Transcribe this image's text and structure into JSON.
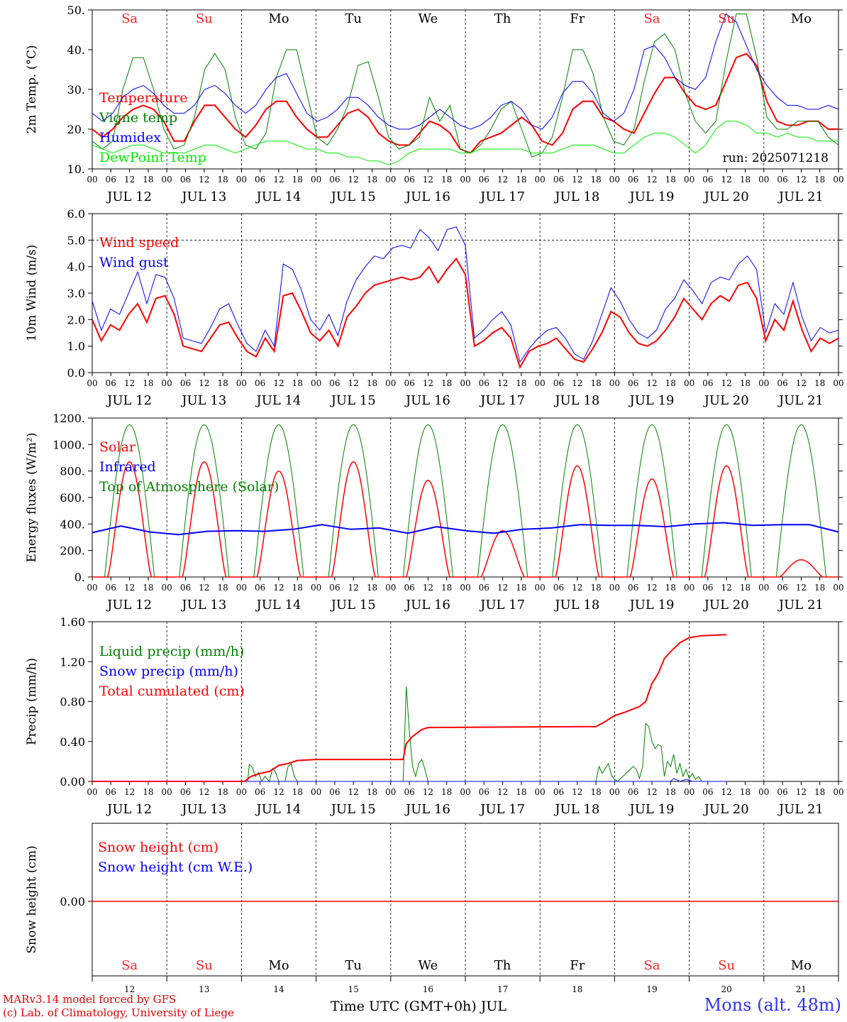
{
  "chart_data": [
    {
      "type": "line",
      "ylabel": "2m Temp. (°C)",
      "ylim": [
        10,
        50
      ],
      "yticks": [
        "10.",
        "20.",
        "30.",
        "40.",
        "50."
      ],
      "annotation": "run: 2025071218",
      "day_labels": [
        {
          "text": "Sa",
          "color": "#ff2020"
        },
        {
          "text": "Su",
          "color": "#ff2020"
        },
        {
          "text": "Mo",
          "color": "#000000"
        },
        {
          "text": "Tu",
          "color": "#000000"
        },
        {
          "text": "We",
          "color": "#000000"
        },
        {
          "text": "Th",
          "color": "#000000"
        },
        {
          "text": "Fr",
          "color": "#000000"
        },
        {
          "text": "Sa",
          "color": "#ff2020"
        },
        {
          "text": "Su",
          "color": "#ff2020"
        },
        {
          "text": "Mo",
          "color": "#000000"
        }
      ],
      "series": [
        {
          "name": "Temperature",
          "color": "#ff0000",
          "width": 2,
          "values": [
            20,
            18,
            20,
            23,
            25,
            26,
            25,
            22,
            17,
            17,
            22,
            26,
            26,
            23,
            20,
            18,
            21,
            25,
            27,
            27,
            23,
            20,
            18,
            18,
            21,
            24,
            25,
            23,
            19,
            17,
            16,
            16,
            19,
            22,
            21,
            19,
            15,
            14,
            17,
            18,
            19,
            21,
            23,
            21,
            17,
            16,
            19,
            25,
            27,
            27,
            23,
            22,
            20,
            19,
            24,
            29,
            33,
            33,
            29,
            26,
            25,
            26,
            32,
            38,
            39,
            36,
            27,
            22,
            21,
            21,
            22,
            22,
            20,
            20
          ]
        },
        {
          "name": "Vigne temp",
          "color": "#008000",
          "width": 1,
          "values": [
            17,
            15,
            17,
            30,
            38,
            38,
            30,
            20,
            15,
            16,
            23,
            35,
            39,
            35,
            23,
            16,
            15,
            19,
            33,
            40,
            40,
            29,
            18,
            16,
            20,
            26,
            36,
            37,
            28,
            18,
            15,
            16,
            18,
            28,
            22,
            26,
            15,
            14,
            16,
            20,
            25,
            27,
            20,
            13,
            14,
            18,
            28,
            40,
            40,
            34,
            23,
            17,
            16,
            20,
            32,
            42,
            44,
            40,
            29,
            22,
            19,
            22,
            37,
            49,
            49,
            38,
            23,
            20,
            20,
            22,
            22,
            22,
            18,
            16
          ]
        },
        {
          "name": "Humidex",
          "color": "#0000ff",
          "width": 1,
          "values": [
            24,
            22,
            24,
            28,
            30,
            31,
            29,
            26,
            24,
            24,
            26,
            30,
            31,
            29,
            26,
            24,
            26,
            30,
            33,
            34,
            29,
            24,
            22,
            23,
            25,
            28,
            28,
            26,
            23,
            21,
            20,
            20,
            21,
            23,
            25,
            23,
            21,
            20,
            21,
            23,
            26,
            27,
            25,
            21,
            20,
            23,
            29,
            32,
            32,
            29,
            24,
            22,
            24,
            30,
            40,
            41,
            38,
            33,
            31,
            30,
            33,
            42,
            49,
            47,
            41,
            35,
            31,
            28,
            26,
            26,
            25,
            25,
            26,
            25
          ]
        },
        {
          "name": "DewPoint Temp",
          "color": "#00ee00",
          "width": 1,
          "values": [
            16,
            15,
            14,
            15,
            16,
            16,
            15,
            14,
            14,
            14,
            15,
            16,
            16,
            15,
            14,
            15,
            16,
            17,
            17,
            17,
            16,
            15,
            15,
            14,
            14,
            13,
            13,
            12,
            12,
            11,
            12,
            14,
            15,
            15,
            15,
            15,
            14,
            14,
            15,
            15,
            15,
            15,
            15,
            14,
            14,
            14,
            15,
            16,
            16,
            16,
            15,
            14,
            14,
            16,
            18,
            19,
            19,
            18,
            16,
            14,
            16,
            20,
            22,
            22,
            21,
            19,
            19,
            18,
            19,
            18,
            18,
            17,
            17,
            17
          ]
        }
      ]
    },
    {
      "type": "line",
      "ylabel": "10m Wind (m/s)",
      "ylim": [
        0,
        6
      ],
      "yticks": [
        "0.0",
        "1.0",
        "2.0",
        "3.0",
        "4.0",
        "5.0",
        "6.0"
      ],
      "dashed_line": 5,
      "series": [
        {
          "name": "Wind speed",
          "color": "#ff0000",
          "width": 2,
          "values": [
            2.0,
            1.2,
            1.8,
            1.6,
            2.2,
            2.6,
            1.9,
            2.8,
            2.9,
            2.2,
            1.0,
            0.9,
            0.8,
            1.3,
            1.8,
            1.9,
            1.3,
            0.8,
            0.6,
            1.3,
            0.8,
            2.9,
            3.0,
            2.3,
            1.5,
            1.2,
            1.6,
            1.0,
            2.1,
            2.5,
            3.0,
            3.3,
            3.4,
            3.5,
            3.6,
            3.5,
            3.6,
            4.0,
            3.4,
            3.9,
            4.3,
            3.7,
            1.0,
            1.2,
            1.5,
            1.7,
            1.3,
            0.2,
            0.8,
            1.0,
            1.1,
            1.3,
            0.9,
            0.5,
            0.4,
            0.9,
            1.5,
            2.3,
            2.1,
            1.5,
            1.1,
            1.0,
            1.2,
            1.6,
            2.1,
            2.8,
            2.4,
            2.0,
            2.6,
            2.9,
            2.7,
            3.3,
            3.4,
            2.8,
            1.2,
            2.0,
            1.6,
            2.7,
            1.6,
            0.8,
            1.3,
            1.1,
            1.3
          ]
        },
        {
          "name": "Wind gust",
          "color": "#0000ff",
          "width": 1,
          "values": [
            2.7,
            1.6,
            2.4,
            2.2,
            3.0,
            3.8,
            2.6,
            3.7,
            3.6,
            2.8,
            1.3,
            1.2,
            1.1,
            1.7,
            2.4,
            2.6,
            1.8,
            1.1,
            0.8,
            1.6,
            1.0,
            4.1,
            3.9,
            3.1,
            2.0,
            1.6,
            2.2,
            1.4,
            2.7,
            3.5,
            4.0,
            4.4,
            4.3,
            4.7,
            4.8,
            4.7,
            5.4,
            5.1,
            4.6,
            5.4,
            5.5,
            4.8,
            1.3,
            1.6,
            2.0,
            2.3,
            1.8,
            0.4,
            0.9,
            1.3,
            1.6,
            1.7,
            1.3,
            0.7,
            0.5,
            1.2,
            2.2,
            3.2,
            2.7,
            2.0,
            1.5,
            1.3,
            1.6,
            2.4,
            2.8,
            3.5,
            3.1,
            2.6,
            3.4,
            3.6,
            3.5,
            4.1,
            4.4,
            3.9,
            1.5,
            2.6,
            2.2,
            3.4,
            2.1,
            1.2,
            1.7,
            1.5,
            1.6
          ]
        }
      ]
    },
    {
      "type": "line",
      "ylabel": "Energy fluxes (W/m²)",
      "ylim": [
        0,
        1200
      ],
      "yticks": [
        "0.",
        "200.",
        "400.",
        "600.",
        "800.",
        "1000.",
        "1200."
      ],
      "solar_peaks": [
        870,
        870,
        800,
        870,
        730,
        350,
        840,
        740,
        840,
        130
      ],
      "series": [
        {
          "name": "Solar",
          "color": "#ff0000",
          "width": 1.5
        },
        {
          "name": "Infrared",
          "color": "#0000ff",
          "width": 2,
          "values": [
            335,
            385,
            340,
            320,
            345,
            350,
            345,
            360,
            395,
            360,
            370,
            330,
            380,
            350,
            330,
            360,
            370,
            395,
            390,
            390,
            380,
            400,
            410,
            390,
            395,
            395,
            340
          ]
        },
        {
          "name": "Top of Atmosphere (Solar)",
          "color": "#008000",
          "width": 1,
          "peak": 1150
        }
      ]
    },
    {
      "type": "line",
      "ylabel": "Precip (mm/h)",
      "ylim": [
        0,
        1.6
      ],
      "yticks": [
        "0.00",
        "0.40",
        "0.80",
        "1.20",
        "1.60"
      ],
      "series": [
        {
          "name": "Liquid precip (mm/h)",
          "color": "#008000",
          "width": 1,
          "points": [
            [
              0,
              0
            ],
            [
              50,
              0
            ],
            [
              50.5,
              0.17
            ],
            [
              51.5,
              0.14
            ],
            [
              52.5,
              0.05
            ],
            [
              53.5,
              0.09
            ],
            [
              54.5,
              0.0
            ],
            [
              55.5,
              0.05
            ],
            [
              57,
              0.0
            ],
            [
              58,
              0.13
            ],
            [
              59,
              0.09
            ],
            [
              60,
              0.0
            ],
            [
              62,
              0.0
            ],
            [
              63,
              0.15
            ],
            [
              64,
              0.18
            ],
            [
              65,
              0.05
            ],
            [
              66,
              0
            ],
            [
              98,
              0
            ],
            [
              100,
              0
            ],
            [
              101,
              0.95
            ],
            [
              102,
              0.5
            ],
            [
              103,
              0.15
            ],
            [
              104,
              0.05
            ],
            [
              105,
              0.18
            ],
            [
              106,
              0.22
            ],
            [
              107,
              0.12
            ],
            [
              108,
              0
            ],
            [
              162,
              0
            ],
            [
              163,
              0.15
            ],
            [
              164,
              0.08
            ],
            [
              165,
              0.13
            ],
            [
              166,
              0.18
            ],
            [
              167,
              0.06
            ],
            [
              168,
              0.02
            ],
            [
              169,
              0
            ],
            [
              174,
              0.15
            ],
            [
              175,
              0.12
            ],
            [
              176,
              0.03
            ],
            [
              177,
              0.15
            ],
            [
              178,
              0.58
            ],
            [
              179,
              0.55
            ],
            [
              180,
              0.4
            ],
            [
              181,
              0.33
            ],
            [
              182,
              0.37
            ],
            [
              183,
              0.35
            ],
            [
              184,
              0.05
            ],
            [
              185,
              0.2
            ],
            [
              186,
              0.15
            ],
            [
              187,
              0.27
            ],
            [
              188,
              0.08
            ],
            [
              189,
              0.18
            ],
            [
              190,
              0.05
            ],
            [
              191,
              0.12
            ],
            [
              192,
              0.03
            ],
            [
              193,
              0.08
            ],
            [
              194,
              0.02
            ],
            [
              195,
              0.05
            ],
            [
              196,
              0
            ],
            [
              204,
              0
            ]
          ]
        },
        {
          "name": "Snow precip (mm/h)",
          "color": "#0000ff",
          "width": 1,
          "points": [
            [
              0,
              0
            ],
            [
              186,
              0
            ],
            [
              187,
              0.03
            ],
            [
              189,
              0
            ],
            [
              191,
              0.02
            ],
            [
              193,
              0
            ],
            [
              204,
              0
            ]
          ]
        },
        {
          "name": "Total cumulated (cm)",
          "color": "#ff0000",
          "width": 2,
          "points": [
            [
              0,
              0
            ],
            [
              49,
              0
            ],
            [
              51,
              0.05
            ],
            [
              54,
              0.08
            ],
            [
              57,
              0.1
            ],
            [
              60,
              0.16
            ],
            [
              63,
              0.18
            ],
            [
              66,
              0.21
            ],
            [
              72,
              0.22
            ],
            [
              100,
              0.22
            ],
            [
              101,
              0.38
            ],
            [
              103,
              0.45
            ],
            [
              106,
              0.52
            ],
            [
              108,
              0.54
            ],
            [
              162,
              0.55
            ],
            [
              165,
              0.6
            ],
            [
              168,
              0.66
            ],
            [
              171,
              0.69
            ],
            [
              176,
              0.75
            ],
            [
              178,
              0.8
            ],
            [
              180,
              0.98
            ],
            [
              182,
              1.08
            ],
            [
              184,
              1.23
            ],
            [
              186,
              1.3
            ],
            [
              189,
              1.39
            ],
            [
              192,
              1.44
            ],
            [
              196,
              1.46
            ],
            [
              204,
              1.47
            ]
          ]
        }
      ]
    },
    {
      "type": "line",
      "ylabel": "Snow height (cm)",
      "ytick": "0.00",
      "series": [
        {
          "name": "Snow height (cm)",
          "color": "#ff0000",
          "value": 0
        },
        {
          "name": "Snow height (cm W.E.)",
          "color": "#0000ff",
          "value": 0
        }
      ]
    }
  ],
  "x_axis": {
    "hour_ticks": [
      "00",
      "06",
      "12",
      "18"
    ],
    "last_tick": "00",
    "date_labels": [
      "JUL 12",
      "JUL 13",
      "JUL 14",
      "JUL 15",
      "JUL 16",
      "JUL 17",
      "JUL 18",
      "JUL 19",
      "JUL 20",
      "JUL 21"
    ],
    "day_numbers": [
      "12",
      "13",
      "14",
      "15",
      "16",
      "17",
      "18",
      "19",
      "20",
      "21"
    ],
    "xlabel": "Time UTC (GMT+0h) JUL"
  },
  "footer": {
    "model_line": "MARv3.14 model forced by GFS",
    "credit_line": "(c) Lab. of Climatology, University of Liege",
    "station": "Mons (alt. 48m)"
  }
}
